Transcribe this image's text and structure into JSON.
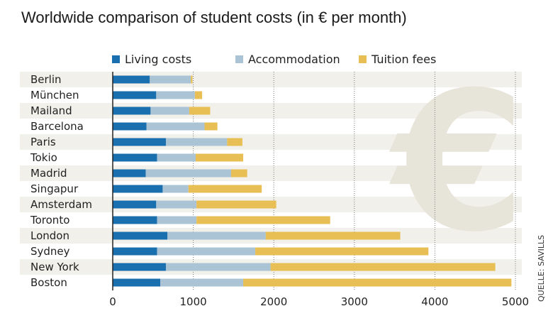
{
  "chart_data": {
    "type": "bar",
    "orientation": "horizontal",
    "stacked": true,
    "title": "Worldwide comparison of student costs (in € per month)",
    "source": "QUELLE: SAVILLS",
    "categories": [
      "Berlin",
      "München",
      "Mailand",
      "Barcelona",
      "Paris",
      "Tokio",
      "Madrid",
      "Singapur",
      "Amsterdam",
      "Toronto",
      "London",
      "Sydney",
      "New York",
      "Boston"
    ],
    "series": [
      {
        "name": "Living costs",
        "color": "#1a6fae",
        "values": [
          460,
          540,
          470,
          420,
          660,
          550,
          410,
          620,
          540,
          550,
          680,
          550,
          660,
          590
        ]
      },
      {
        "name": "Accommodation",
        "color": "#aac4d6",
        "values": [
          510,
          480,
          480,
          720,
          760,
          480,
          1060,
          320,
          500,
          490,
          1220,
          1220,
          1300,
          1030
        ]
      },
      {
        "name": "Tuition fees",
        "color": "#e8bf55",
        "values": [
          20,
          90,
          260,
          160,
          190,
          590,
          200,
          910,
          990,
          1660,
          1670,
          2150,
          2790,
          3330
        ]
      }
    ],
    "xlim": [
      0,
      5000
    ],
    "xticks": [
      0,
      1000,
      2000,
      3000,
      4000,
      5000
    ],
    "grid": true,
    "legend_position": "top"
  }
}
